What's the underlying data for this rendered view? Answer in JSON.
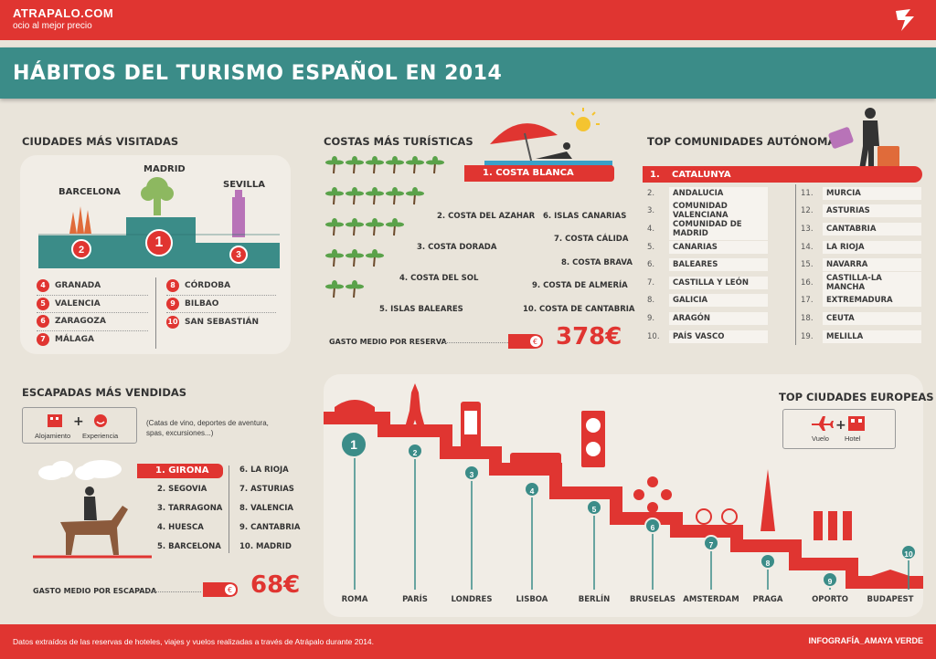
{
  "header": {
    "brand": "ATRAPALO.COM",
    "tagline": "ocio al mejor precio"
  },
  "title": "HÁBITOS DEL TURISMO ESPAÑOL EN 2014",
  "ciudades": {
    "heading": "CIUDADES MÁS VISITADAS",
    "podium": [
      {
        "name": "MADRID",
        "rank": "1"
      },
      {
        "name": "BARCELONA",
        "rank": "2"
      },
      {
        "name": "SEVILLA",
        "rank": "3"
      }
    ],
    "left": [
      {
        "n": "4",
        "name": "GRANADA"
      },
      {
        "n": "5",
        "name": "VALENCIA"
      },
      {
        "n": "6",
        "name": "ZARAGOZA"
      },
      {
        "n": "7",
        "name": "MÁLAGA"
      }
    ],
    "right": [
      {
        "n": "8",
        "name": "CÓRDOBA"
      },
      {
        "n": "9",
        "name": "BILBAO"
      },
      {
        "n": "10",
        "name": "SAN SEBASTIÁN"
      }
    ]
  },
  "costas": {
    "heading": "COSTAS MÁS TURÍSTICAS",
    "top": "1. COSTA BLANCA",
    "left": [
      "2. COSTA DEL AZAHAR",
      "3. COSTA DORADA",
      "4. COSTA DEL SOL",
      "5. ISLAS BALEARES"
    ],
    "right": [
      "6. ISLAS CANARIAS",
      "7. COSTA CÁLIDA",
      "8. COSTA BRAVA",
      "9. COSTA DE ALMERÍA",
      "10. COSTA DE CANTABRIA"
    ],
    "gasto_label": "GASTO MEDIO POR RESERVA",
    "gasto_value": "378€"
  },
  "comunidades": {
    "heading": "TOP COMUNIDADES AUTÓNOMAS",
    "top": {
      "n": "1.",
      "name": "CATALUNYA"
    },
    "left": [
      {
        "n": "2.",
        "name": "ANDALUCIA"
      },
      {
        "n": "3.",
        "name": "COMUNIDAD VALENCIANA"
      },
      {
        "n": "4.",
        "name": "COMUNIDAD DE MADRID"
      },
      {
        "n": "5.",
        "name": "CANARIAS"
      },
      {
        "n": "6.",
        "name": "BALEARES"
      },
      {
        "n": "7.",
        "name": "CASTILLA Y LEÓN"
      },
      {
        "n": "8.",
        "name": "GALICIA"
      },
      {
        "n": "9.",
        "name": "ARAGÓN"
      },
      {
        "n": "10.",
        "name": "PAÍS VASCO"
      }
    ],
    "right": [
      {
        "n": "11.",
        "name": "MURCIA"
      },
      {
        "n": "12.",
        "name": "ASTURIAS"
      },
      {
        "n": "13.",
        "name": "CANTABRIA"
      },
      {
        "n": "14.",
        "name": "LA RIOJA"
      },
      {
        "n": "15.",
        "name": "NAVARRA"
      },
      {
        "n": "16.",
        "name": "CASTILLA-LA MANCHA"
      },
      {
        "n": "17.",
        "name": "EXTREMADURA"
      },
      {
        "n": "18.",
        "name": "CEUTA"
      },
      {
        "n": "19.",
        "name": "MELILLA"
      }
    ]
  },
  "escapadas": {
    "heading": "ESCAPADAS MÁS VENDIDAS",
    "legend_a": "Alojamiento",
    "legend_b": "Experiencia",
    "note": "(Catas de vino, deportes de aventura, spas, excursiones...)",
    "top": "1. GIRONA",
    "left": [
      "2. SEGOVIA",
      "3. TARRAGONA",
      "4. HUESCA",
      "5. BARCELONA"
    ],
    "right": [
      "6. LA RIOJA",
      "7. ASTURIAS",
      "8. VALENCIA",
      "9. CANTABRIA",
      "10. MADRID"
    ],
    "gasto_label": "GASTO MEDIO POR ESCAPADA",
    "gasto_value": "68€"
  },
  "europeas": {
    "heading": "TOP CIUDADES EUROPEAS",
    "legend_a": "Vuelo",
    "legend_b": "Hotel",
    "cities": [
      {
        "n": "1",
        "name": "ROMA"
      },
      {
        "n": "2",
        "name": "PARÍS"
      },
      {
        "n": "3",
        "name": "LONDRES"
      },
      {
        "n": "4",
        "name": "LISBOA"
      },
      {
        "n": "5",
        "name": "BERLÍN"
      },
      {
        "n": "6",
        "name": "BRUSELAS"
      },
      {
        "n": "7",
        "name": "AMSTERDAM"
      },
      {
        "n": "8",
        "name": "PRAGA"
      },
      {
        "n": "9",
        "name": "OPORTO"
      },
      {
        "n": "10",
        "name": "BUDAPEST"
      }
    ]
  },
  "footer": {
    "source": "Datos extraídos de las reservas de hoteles, viajes y vuelos realizadas a través de Atrápalo durante 2014.",
    "credit": "INFOGRAFÍA_AMAYA VERDE"
  },
  "colors": {
    "red": "#e03531",
    "teal": "#3b8c88",
    "bg": "#e9e4da"
  }
}
